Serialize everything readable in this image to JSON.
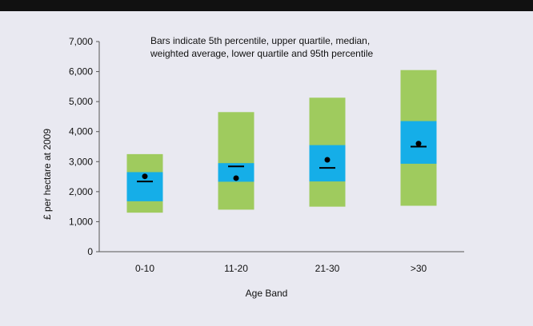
{
  "chart_data": {
    "type": "box",
    "note": "Bars indicate 5th percentile, upper quartile, median,\nweighted average, lower quartile and 95th percentile",
    "xlabel": "Age Band",
    "ylabel": "£ per hectare at 2009",
    "ylim": [
      0,
      7000
    ],
    "yticks": [
      0,
      1000,
      2000,
      3000,
      4000,
      5000,
      6000,
      7000
    ],
    "ytick_labels": [
      "0",
      "1,000",
      "2,000",
      "3,000",
      "4,000",
      "5,000",
      "6,000",
      "7,000"
    ],
    "categories": [
      "0-10",
      "11-20",
      "21-30",
      ">30"
    ],
    "p5": [
      1300,
      1400,
      1500,
      1530
    ],
    "p95": [
      3250,
      4650,
      5130,
      6050
    ],
    "lower_quartile": [
      1680,
      2330,
      2340,
      2930
    ],
    "upper_quartile": [
      2650,
      2950,
      3550,
      4350
    ],
    "median": [
      2340,
      2840,
      2790,
      3500
    ],
    "weighted_average": [
      2510,
      2450,
      3060,
      3600
    ],
    "grid": false,
    "legend": "none"
  },
  "colors": {
    "outer_range": "#9fcb5e",
    "interquartile": "#15aee8",
    "background": "#e9e9f1",
    "top_band": "#111111",
    "marker": "#000000"
  }
}
